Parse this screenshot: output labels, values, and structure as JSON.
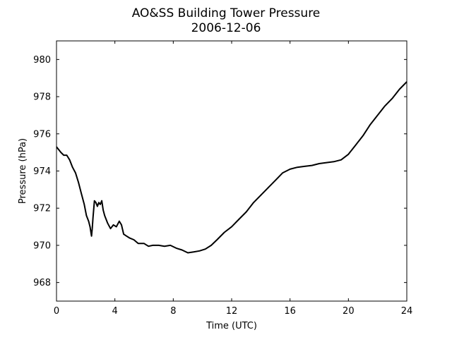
{
  "chart_data": {
    "type": "line",
    "title": "AO&SS Building Tower Pressure",
    "subtitle": "2006-12-06",
    "xlabel": "Time (UTC)",
    "ylabel": "Pressure (hPa)",
    "xlim": [
      0,
      24
    ],
    "ylim": [
      967,
      981
    ],
    "xticks": [
      0,
      4,
      8,
      12,
      16,
      20,
      24
    ],
    "yticks": [
      968,
      970,
      972,
      974,
      976,
      978,
      980
    ],
    "grid": false,
    "series": [
      {
        "color": "#000000",
        "x": [
          0.0,
          0.3,
          0.5,
          0.7,
          0.9,
          1.1,
          1.3,
          1.5,
          1.7,
          1.9,
          2.05,
          2.2,
          2.3,
          2.4,
          2.45,
          2.5,
          2.6,
          2.7,
          2.8,
          2.9,
          3.0,
          3.1,
          3.2,
          3.3,
          3.5,
          3.7,
          3.9,
          4.1,
          4.3,
          4.45,
          4.6,
          4.8,
          5.0,
          5.3,
          5.6,
          6.0,
          6.3,
          6.6,
          7.0,
          7.4,
          7.8,
          8.2,
          8.6,
          9.0,
          9.4,
          9.8,
          10.2,
          10.6,
          11.0,
          11.5,
          12.0,
          12.5,
          13.0,
          13.5,
          14.0,
          14.5,
          15.0,
          15.5,
          16.0,
          16.5,
          17.0,
          17.5,
          18.0,
          18.5,
          19.0,
          19.5,
          20.0,
          20.5,
          21.0,
          21.5,
          22.0,
          22.5,
          23.0,
          23.5,
          24.0
        ],
        "y": [
          975.3,
          975.0,
          974.85,
          974.85,
          974.6,
          974.2,
          973.9,
          973.4,
          972.8,
          972.2,
          971.6,
          971.3,
          971.0,
          970.5,
          970.9,
          971.5,
          972.4,
          972.3,
          972.1,
          972.3,
          972.2,
          972.4,
          971.9,
          971.6,
          971.2,
          970.9,
          971.1,
          971.0,
          971.3,
          971.1,
          970.6,
          970.5,
          970.4,
          970.3,
          970.1,
          970.1,
          969.95,
          970.0,
          970.0,
          969.95,
          970.0,
          969.85,
          969.75,
          969.6,
          969.65,
          969.7,
          969.8,
          970.0,
          970.3,
          970.7,
          971.0,
          971.4,
          971.8,
          972.3,
          972.7,
          973.1,
          973.5,
          973.9,
          974.1,
          974.2,
          974.25,
          974.3,
          974.4,
          974.45,
          974.5,
          974.6,
          974.9,
          975.4,
          975.9,
          976.5,
          977.0,
          977.5,
          977.9,
          978.4,
          978.8
        ]
      }
    ]
  }
}
